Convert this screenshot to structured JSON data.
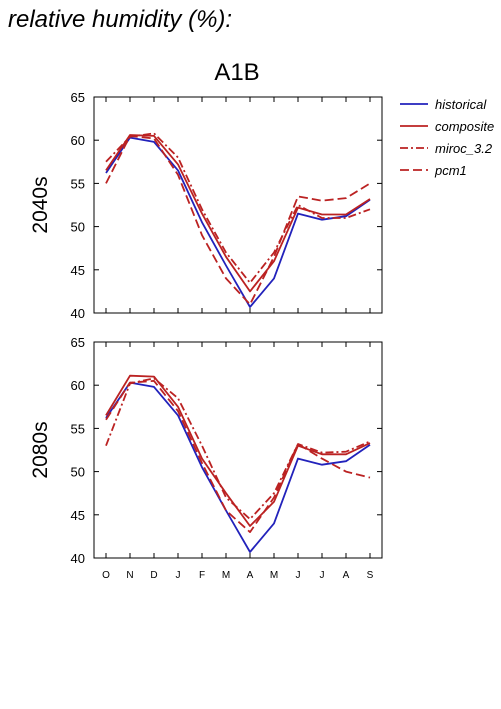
{
  "title": "relative humidity (%):",
  "scenario": "A1B",
  "chart_data": [
    {
      "type": "line",
      "row_label": "2040s",
      "x": [
        "O",
        "N",
        "D",
        "J",
        "F",
        "M",
        "A",
        "M",
        "J",
        "J",
        "A",
        "S"
      ],
      "ylim": [
        40,
        65
      ],
      "yticks": [
        40,
        45,
        50,
        55,
        60,
        65
      ],
      "series": [
        {
          "name": "historical",
          "color": "#2222bb",
          "dash": "solid",
          "values": [
            56.2,
            60.3,
            59.8,
            56.5,
            50.5,
            45.5,
            40.7,
            44.0,
            51.5,
            50.8,
            51.2,
            53.1
          ]
        },
        {
          "name": "composite",
          "color": "#bb2222",
          "dash": "solid",
          "values": [
            56.5,
            60.6,
            60.5,
            57.2,
            51.5,
            46.5,
            42.5,
            46.0,
            52.2,
            51.4,
            51.4,
            53.2
          ]
        },
        {
          "name": "miroc_3.2",
          "color": "#bb2222",
          "dash": "dashdot",
          "values": [
            57.5,
            60.4,
            60.8,
            58.0,
            52.0,
            47.0,
            43.5,
            47.0,
            52.5,
            51.0,
            51.0,
            52.0
          ]
        },
        {
          "name": "pcm1",
          "color": "#bb2222",
          "dash": "dash",
          "values": [
            55.0,
            60.5,
            60.2,
            56.0,
            49.0,
            44.0,
            41.0,
            46.5,
            53.5,
            53.0,
            53.3,
            55.0
          ]
        }
      ]
    },
    {
      "type": "line",
      "row_label": "2080s",
      "x": [
        "O",
        "N",
        "D",
        "J",
        "F",
        "M",
        "A",
        "M",
        "J",
        "J",
        "A",
        "S"
      ],
      "ylim": [
        40,
        65
      ],
      "yticks": [
        40,
        45,
        50,
        55,
        60,
        65
      ],
      "series": [
        {
          "name": "historical",
          "color": "#2222bb",
          "dash": "solid",
          "values": [
            56.2,
            60.3,
            59.8,
            56.5,
            50.5,
            45.5,
            40.7,
            44.0,
            51.5,
            50.8,
            51.2,
            53.1
          ]
        },
        {
          "name": "composite",
          "color": "#bb2222",
          "dash": "solid",
          "values": [
            56.5,
            61.1,
            61.0,
            57.5,
            51.5,
            47.5,
            43.7,
            46.5,
            53.0,
            52.0,
            52.0,
            53.3
          ]
        },
        {
          "name": "miroc_3.2",
          "color": "#bb2222",
          "dash": "dashdot",
          "values": [
            53.0,
            60.2,
            60.8,
            58.5,
            53.0,
            47.0,
            44.5,
            47.5,
            53.2,
            52.2,
            52.3,
            53.5
          ]
        },
        {
          "name": "pcm1",
          "color": "#bb2222",
          "dash": "dash",
          "values": [
            56.0,
            60.3,
            60.5,
            57.0,
            51.0,
            45.5,
            43.0,
            47.0,
            53.2,
            51.5,
            50.0,
            49.3
          ]
        }
      ]
    }
  ]
}
